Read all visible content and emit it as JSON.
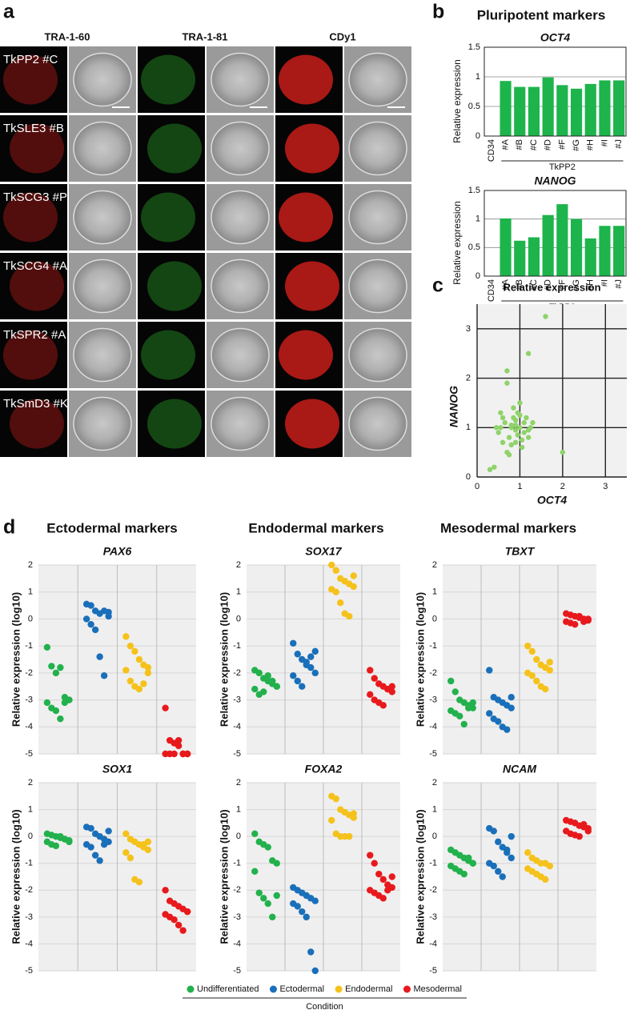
{
  "panel_labels": [
    "a",
    "b",
    "c",
    "d"
  ],
  "micrographs": {
    "columns": [
      "TRA-1-60",
      "TRA-1-81",
      "CDy1"
    ],
    "column_colors": [
      "#e0201c",
      "#2ec02e",
      "#e0201c"
    ],
    "rows": [
      "TkPP2 #C",
      "TkSLE3 #B",
      "TkSCG3 #P",
      "TkSCG4 #A",
      "TkSPR2 #A",
      "TkSmD3 #K"
    ]
  },
  "pluripotent_title": {
    "text": "Pluripotent markers",
    "color": "#1db44c"
  },
  "marker_group_titles": [
    {
      "text": "Ectodermal markers",
      "color": "#1a73c0"
    },
    {
      "text": "Endodermal markers",
      "color": "#f5c21b"
    },
    {
      "text": "Mesodermal markers",
      "color": "#e8191c"
    }
  ],
  "groups": [
    {
      "name": "Undifferentiated",
      "color": "#22b14c"
    },
    {
      "name": "Ectodermal",
      "color": "#1a6fba"
    },
    {
      "name": "Endodermal",
      "color": "#f5c21b"
    },
    {
      "name": "Mesodermal",
      "color": "#e8191c"
    }
  ],
  "legend_title": "Condition",
  "chart_data": [
    {
      "type": "bar",
      "title": "OCT4",
      "ylabel": "Relative expression",
      "group_label": "TkPP2",
      "categories": [
        "CD34",
        "#A",
        "#B",
        "#C",
        "#D",
        "#F",
        "#G",
        "#H",
        "#I",
        "#J"
      ],
      "values": [
        0,
        0.93,
        0.83,
        0.83,
        0.99,
        0.86,
        0.8,
        0.88,
        0.94,
        0.94
      ],
      "color": "#1db44c",
      "ylim": [
        0,
        1.5
      ],
      "yticks": [
        0,
        0.5,
        1,
        1.5
      ],
      "grid": true
    },
    {
      "type": "bar",
      "title": "NANOG",
      "ylabel": "Relative expression",
      "group_label": "TkPP2",
      "categories": [
        "CD34",
        "#A",
        "#B",
        "#C",
        "#D",
        "#F",
        "#G",
        "#H",
        "#I",
        "#J"
      ],
      "values": [
        0,
        1.01,
        0.62,
        0.68,
        1.07,
        1.26,
        1.0,
        0.66,
        0.88,
        0.88
      ],
      "color": "#1db44c",
      "ylim": [
        0,
        1.5
      ],
      "yticks": [
        0,
        0.5,
        1,
        1.5
      ],
      "grid": true
    },
    {
      "type": "scatter",
      "title": "Relative expression",
      "xlabel": "OCT4",
      "ylabel": "NANOG",
      "color": "#8fd36a",
      "x": [
        0.3,
        0.4,
        0.5,
        0.55,
        0.6,
        0.65,
        0.7,
        0.7,
        0.75,
        0.8,
        0.8,
        0.85,
        0.9,
        0.9,
        0.95,
        1.0,
        1.0,
        1.05,
        1.1,
        1.1,
        1.15,
        1.2,
        1.25,
        1.3,
        0.6,
        0.7,
        0.85,
        0.9,
        1.0,
        1.2,
        0.8,
        0.75,
        0.95,
        1.6,
        1.2,
        2.0,
        0.55,
        0.45,
        0.9,
        1.05
      ],
      "y": [
        0.15,
        0.2,
        0.9,
        1.0,
        0.7,
        1.1,
        1.9,
        2.15,
        0.8,
        1.0,
        0.65,
        1.2,
        1.05,
        0.95,
        1.3,
        1.0,
        1.5,
        0.6,
        1.1,
        0.9,
        1.2,
        0.8,
        1.0,
        1.1,
        1.2,
        0.5,
        1.4,
        0.7,
        1.25,
        0.95,
        1.05,
        0.45,
        0.85,
        3.25,
        2.5,
        0.5,
        1.3,
        1.0,
        1.15,
        0.75
      ],
      "xlim": [
        0,
        3.5
      ],
      "ylim": [
        0,
        3.5
      ],
      "xticks": [
        0,
        1,
        2,
        3
      ],
      "yticks": [
        0,
        1,
        2,
        3
      ],
      "grid": true
    },
    {
      "type": "strip",
      "title": "PAX6",
      "ylabel": "Relative expression (log10)",
      "ylim": [
        -5,
        2
      ],
      "yticks": [
        -5,
        -4,
        -3,
        -2,
        -1,
        0,
        1,
        2
      ],
      "grid": true,
      "series": [
        {
          "values": [
            -1.05,
            -1.75,
            -2.0,
            -1.8,
            -2.9,
            -3.0,
            -3.1,
            -3.3,
            -3.4,
            -3.7,
            -3.1,
            -3.0
          ]
        },
        {
          "values": [
            0.55,
            0.5,
            0.3,
            0.2,
            0.3,
            0.1,
            0.0,
            -0.2,
            -0.4,
            -1.4,
            -2.1,
            0.25
          ]
        },
        {
          "values": [
            -0.65,
            -1.0,
            -1.2,
            -1.5,
            -1.7,
            -2.0,
            -1.9,
            -2.3,
            -2.5,
            -2.6,
            -2.4,
            -1.8
          ]
        },
        {
          "values": [
            -3.3,
            -4.5,
            -4.6,
            -4.7,
            -5,
            -5,
            -5,
            -5,
            -5,
            -4.5,
            -5,
            -5
          ]
        }
      ]
    },
    {
      "type": "strip",
      "title": "SOX17",
      "ylabel": "Relative expression (log10)",
      "ylim": [
        -5,
        2
      ],
      "yticks": [
        -5,
        -4,
        -3,
        -2,
        -1,
        0,
        1,
        2
      ],
      "grid": true,
      "series": [
        {
          "values": [
            -1.9,
            -2.0,
            -2.2,
            -2.3,
            -2.4,
            -2.5,
            -2.6,
            -2.8,
            -2.7,
            -2.1,
            -2.3,
            -2.5
          ]
        },
        {
          "values": [
            -0.9,
            -1.3,
            -1.5,
            -1.6,
            -1.8,
            -2.0,
            -2.1,
            -2.3,
            -2.5,
            -1.7,
            -1.4,
            -1.2
          ]
        },
        {
          "values": [
            2.0,
            1.8,
            1.5,
            1.4,
            1.3,
            1.2,
            1.1,
            1.0,
            0.6,
            0.2,
            0.1,
            1.6
          ]
        },
        {
          "values": [
            -1.9,
            -2.2,
            -2.4,
            -2.5,
            -2.6,
            -2.7,
            -2.8,
            -3.0,
            -3.1,
            -3.2,
            -2.6,
            -2.5
          ]
        }
      ]
    },
    {
      "type": "strip",
      "title": "TBXT",
      "ylabel": "Relative expression (log10)",
      "ylim": [
        -5,
        2
      ],
      "yticks": [
        -5,
        -4,
        -3,
        -2,
        -1,
        0,
        1,
        2
      ],
      "grid": true,
      "series": [
        {
          "values": [
            -2.3,
            -2.7,
            -3.0,
            -3.1,
            -3.2,
            -3.3,
            -3.4,
            -3.5,
            -3.6,
            -3.9,
            -3.3,
            -3.1
          ]
        },
        {
          "values": [
            -1.9,
            -2.9,
            -3.0,
            -3.1,
            -3.2,
            -3.3,
            -3.5,
            -3.7,
            -3.8,
            -4.0,
            -4.1,
            -2.9
          ]
        },
        {
          "values": [
            -1.0,
            -1.2,
            -1.5,
            -1.7,
            -1.8,
            -1.9,
            -2.0,
            -2.1,
            -2.3,
            -2.5,
            -2.6,
            -1.6
          ]
        },
        {
          "values": [
            0.2,
            0.15,
            0.1,
            0.05,
            0.0,
            -0.05,
            -0.1,
            -0.15,
            -0.2,
            0.1,
            -0.1,
            0.0
          ]
        }
      ]
    },
    {
      "type": "strip",
      "title": "SOX1",
      "ylabel": "Relative expression (log10)",
      "ylim": [
        -5,
        2
      ],
      "yticks": [
        -5,
        -4,
        -3,
        -2,
        -1,
        0,
        1,
        2
      ],
      "grid": true,
      "series": [
        {
          "values": [
            0.1,
            0.05,
            0.0,
            -0.05,
            -0.1,
            -0.15,
            -0.2,
            -0.3,
            -0.35,
            0.0,
            -0.1,
            -0.2
          ]
        },
        {
          "values": [
            0.35,
            0.3,
            0.1,
            0.0,
            -0.1,
            -0.2,
            -0.3,
            -0.4,
            -0.7,
            -0.9,
            -0.3,
            0.2
          ]
        },
        {
          "values": [
            0.1,
            -0.1,
            -0.2,
            -0.3,
            -0.4,
            -0.5,
            -0.6,
            -0.8,
            -1.6,
            -1.7,
            -0.3,
            -0.2
          ]
        },
        {
          "values": [
            -2.0,
            -2.4,
            -2.5,
            -2.6,
            -2.7,
            -2.8,
            -2.9,
            -3.0,
            -3.1,
            -3.3,
            -3.5,
            -2.8
          ]
        }
      ]
    },
    {
      "type": "strip",
      "title": "FOXA2",
      "ylabel": "Relative expression (log10)",
      "ylim": [
        -5,
        2
      ],
      "yticks": [
        -5,
        -4,
        -3,
        -2,
        -1,
        0,
        1,
        2
      ],
      "grid": true,
      "series": [
        {
          "values": [
            0.1,
            -0.2,
            -0.3,
            -0.4,
            -0.9,
            -1.0,
            -1.3,
            -2.1,
            -2.3,
            -2.5,
            -3.0,
            -2.2
          ]
        },
        {
          "values": [
            -1.9,
            -2.0,
            -2.1,
            -2.2,
            -2.3,
            -2.4,
            -2.5,
            -2.6,
            -2.8,
            -3.0,
            -4.3,
            -5.0
          ]
        },
        {
          "values": [
            1.5,
            1.4,
            1.0,
            0.9,
            0.8,
            0.7,
            0.6,
            0.1,
            0.0,
            0.0,
            0.0,
            0.85
          ]
        },
        {
          "values": [
            -0.7,
            -1.0,
            -1.4,
            -1.6,
            -1.8,
            -1.9,
            -2.0,
            -2.1,
            -2.2,
            -2.3,
            -2.0,
            -1.5
          ]
        }
      ]
    },
    {
      "type": "strip",
      "title": "NCAM",
      "ylabel": "Relative expression (log10)",
      "ylim": [
        -5,
        2
      ],
      "yticks": [
        -5,
        -4,
        -3,
        -2,
        -1,
        0,
        1,
        2
      ],
      "grid": true,
      "series": [
        {
          "values": [
            -0.5,
            -0.6,
            -0.7,
            -0.8,
            -0.9,
            -1.0,
            -1.1,
            -1.2,
            -1.3,
            -1.4,
            -0.8,
            -1.0
          ]
        },
        {
          "values": [
            0.3,
            0.2,
            -0.2,
            -0.4,
            -0.6,
            -0.8,
            -1.0,
            -1.1,
            -1.3,
            -1.5,
            -0.5,
            0.0
          ]
        },
        {
          "values": [
            -0.6,
            -0.8,
            -0.9,
            -1.0,
            -1.0,
            -1.1,
            -1.2,
            -1.3,
            -1.4,
            -1.5,
            -1.6,
            -1.1
          ]
        },
        {
          "values": [
            0.6,
            0.55,
            0.5,
            0.4,
            0.35,
            0.3,
            0.2,
            0.1,
            0.05,
            0.0,
            0.45,
            0.2
          ]
        }
      ]
    }
  ]
}
